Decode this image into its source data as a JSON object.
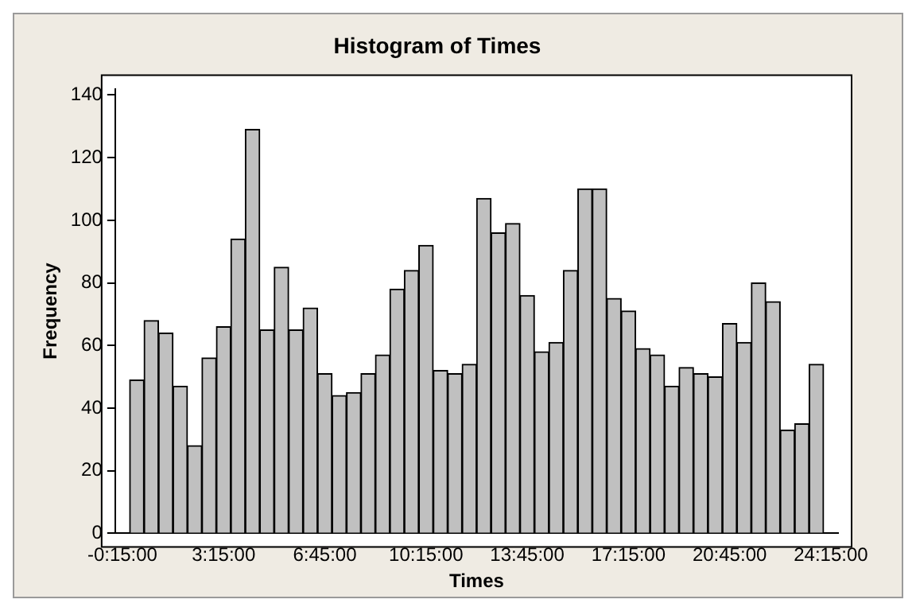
{
  "chart_data": {
    "type": "histogram",
    "title": "Histogram of Times",
    "xlabel": "Times",
    "ylabel": "Frequency",
    "color": "#c0c0c0",
    "bins": [
      0,
      0.5,
      1,
      1.5,
      2,
      2.5,
      3,
      3.5,
      4,
      4.5,
      5,
      5.5,
      6,
      6.5,
      7,
      7.5,
      8,
      8.5,
      9,
      9.5,
      10,
      10.5,
      11,
      11.5,
      12,
      12.5,
      13,
      13.5,
      14,
      14.5,
      15,
      15.5,
      16,
      16.5,
      17,
      17.5,
      18,
      18.5,
      19,
      19.5,
      20,
      20.5,
      21,
      21.5,
      22,
      22.5,
      23,
      23.5,
      24
    ],
    "values": [
      49,
      68,
      64,
      47,
      28,
      56,
      66,
      94,
      129,
      65,
      85,
      65,
      72,
      51,
      44,
      45,
      51,
      57,
      78,
      84,
      92,
      52,
      51,
      54,
      107,
      96,
      99,
      76,
      58,
      61,
      84,
      110,
      110,
      75,
      71,
      59,
      57,
      47,
      53,
      51,
      50,
      67,
      61,
      80,
      74,
      33,
      35,
      54
    ],
    "xlim": [
      -0.5,
      24.5
    ],
    "xticks": [
      {
        "value": -0.25,
        "label": "-0:15:00"
      },
      {
        "value": 3.25,
        "label": "3:15:00"
      },
      {
        "value": 6.75,
        "label": "6:45:00"
      },
      {
        "value": 10.25,
        "label": "10:15:00"
      },
      {
        "value": 13.75,
        "label": "13:45:00"
      },
      {
        "value": 17.25,
        "label": "17:15:00"
      },
      {
        "value": 20.75,
        "label": "20:45:00"
      },
      {
        "value": 24.25,
        "label": "24:15:00"
      }
    ],
    "ylim": [
      0,
      142
    ],
    "yticks": [
      0,
      20,
      40,
      60,
      80,
      100,
      120,
      140
    ],
    "grid": false,
    "legend": false
  }
}
